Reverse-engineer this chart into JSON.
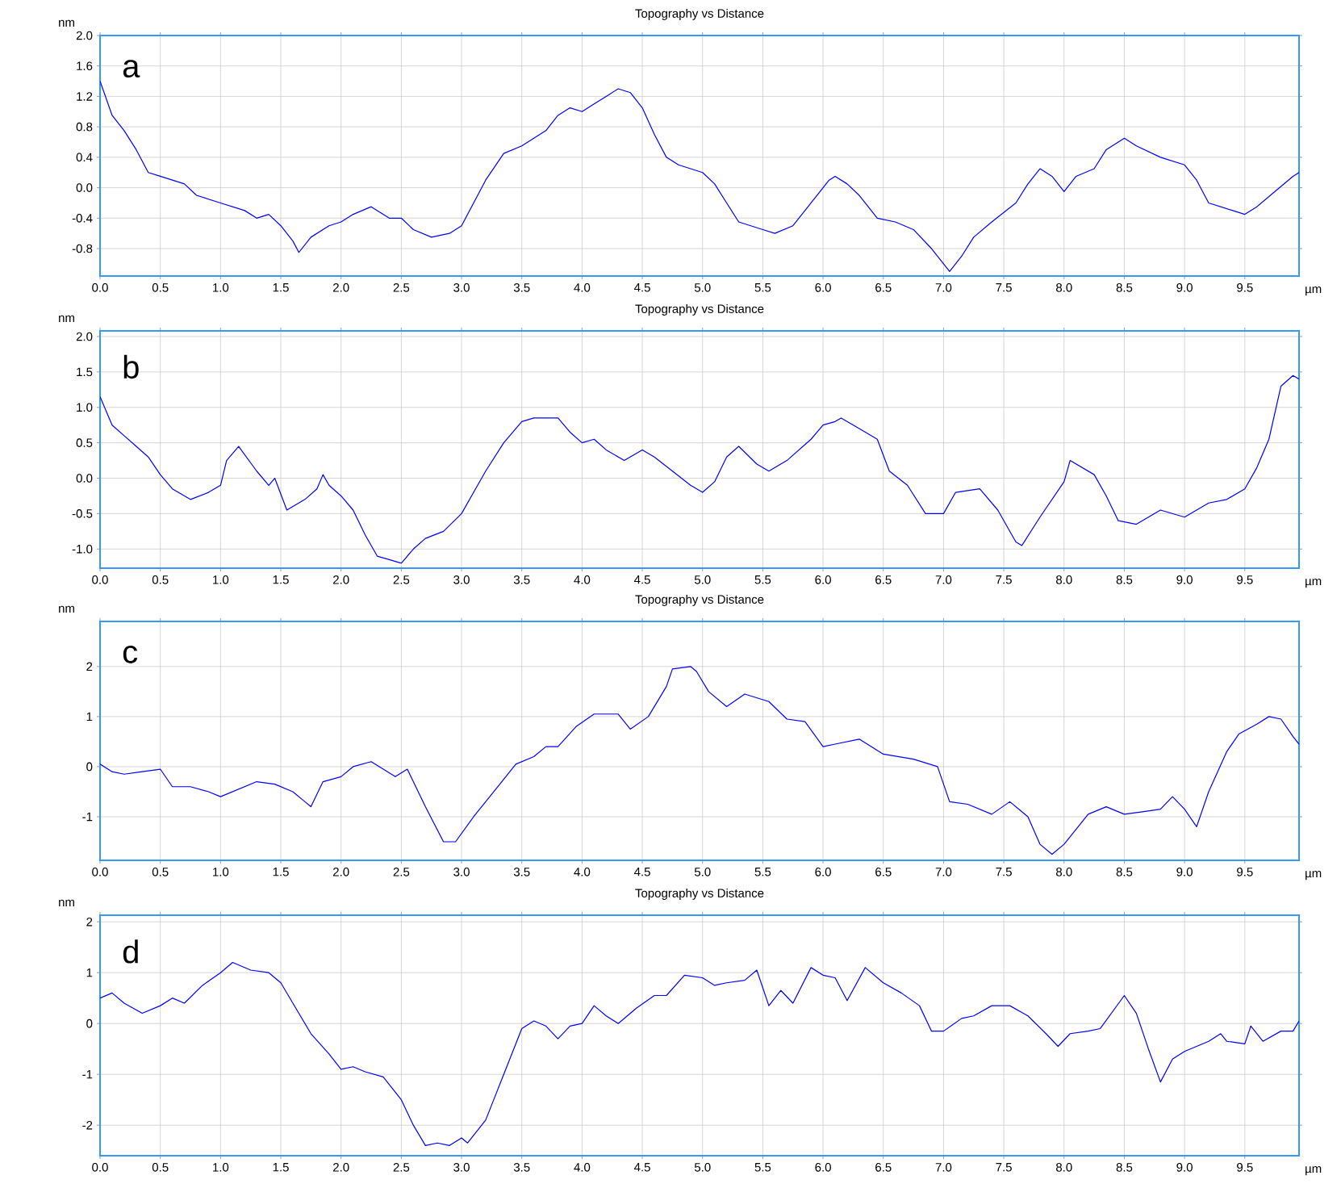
{
  "chart_data": [
    {
      "type": "line",
      "title": "Topography  vs  Distance",
      "xlabel": "µm",
      "ylabel": "nm",
      "annotations": [
        "a"
      ],
      "grid": true,
      "xlim": [
        0,
        9.95
      ],
      "ylim": [
        -1.16,
        2.0
      ],
      "xticks": [
        {
          "value": 0,
          "label": "0.0"
        },
        {
          "value": 0.5,
          "label": "0.5"
        },
        {
          "value": 1,
          "label": "1.0"
        },
        {
          "value": 1.5,
          "label": "1.5"
        },
        {
          "value": 2,
          "label": "2.0"
        },
        {
          "value": 2.5,
          "label": "2.5"
        },
        {
          "value": 3,
          "label": "3.0"
        },
        {
          "value": 3.5,
          "label": "3.5"
        },
        {
          "value": 4,
          "label": "4.0"
        },
        {
          "value": 4.5,
          "label": "4.5"
        },
        {
          "value": 5,
          "label": "5.0"
        },
        {
          "value": 5.5,
          "label": "5.5"
        },
        {
          "value": 6,
          "label": "6.0"
        },
        {
          "value": 6.5,
          "label": "6.5"
        },
        {
          "value": 7,
          "label": "7.0"
        },
        {
          "value": 7.5,
          "label": "7.5"
        },
        {
          "value": 8,
          "label": "8.0"
        },
        {
          "value": 8.5,
          "label": "8.5"
        },
        {
          "value": 9,
          "label": "9.0"
        },
        {
          "value": 9.5,
          "label": "9.5"
        }
      ],
      "yticks": [
        -0.8,
        -0.4,
        {
          "value": 0,
          "label": "0.0"
        },
        0.4,
        0.8,
        1.2,
        1.6,
        {
          "value": 2,
          "label": "2.0"
        }
      ],
      "x": [
        0,
        0.1,
        0.2,
        0.3,
        0.4,
        0.5,
        0.6,
        0.7,
        0.8,
        1.0,
        1.2,
        1.3,
        1.4,
        1.5,
        1.6,
        1.65,
        1.75,
        1.9,
        2.0,
        2.1,
        2.25,
        2.4,
        2.5,
        2.6,
        2.75,
        2.9,
        3.0,
        3.1,
        3.2,
        3.35,
        3.5,
        3.6,
        3.7,
        3.8,
        3.9,
        4.0,
        4.1,
        4.2,
        4.3,
        4.4,
        4.5,
        4.6,
        4.7,
        4.8,
        5.0,
        5.1,
        5.2,
        5.3,
        5.5,
        5.6,
        5.75,
        5.9,
        6.05,
        6.1,
        6.2,
        6.3,
        6.45,
        6.6,
        6.75,
        6.9,
        7.0,
        7.05,
        7.15,
        7.25,
        7.4,
        7.6,
        7.7,
        7.8,
        7.9,
        8.0,
        8.1,
        8.25,
        8.35,
        8.5,
        8.6,
        8.8,
        9.0,
        9.1,
        9.2,
        9.4,
        9.5,
        9.6,
        9.75,
        9.9,
        9.95
      ],
      "series": [
        {
          "color": "#0000ff",
          "values": [
            1.4,
            0.95,
            0.75,
            0.5,
            0.2,
            0.15,
            0.1,
            0.05,
            -0.1,
            -0.2,
            -0.3,
            -0.4,
            -0.35,
            -0.5,
            -0.7,
            -0.85,
            -0.65,
            -0.5,
            -0.45,
            -0.35,
            -0.25,
            -0.4,
            -0.4,
            -0.55,
            -0.65,
            -0.6,
            -0.5,
            -0.2,
            0.1,
            0.45,
            0.55,
            0.65,
            0.75,
            0.95,
            1.05,
            1.0,
            1.1,
            1.2,
            1.3,
            1.25,
            1.05,
            0.7,
            0.4,
            0.3,
            0.2,
            0.05,
            -0.2,
            -0.45,
            -0.55,
            -0.6,
            -0.5,
            -0.2,
            0.1,
            0.15,
            0.05,
            -0.1,
            -0.4,
            -0.45,
            -0.55,
            -0.8,
            -1.0,
            -1.1,
            -0.9,
            -0.65,
            -0.45,
            -0.2,
            0.05,
            0.25,
            0.15,
            -0.05,
            0.15,
            0.25,
            0.5,
            0.65,
            0.55,
            0.4,
            0.3,
            0.1,
            -0.2,
            -0.3,
            -0.35,
            -0.25,
            -0.05,
            0.15,
            0.2
          ]
        }
      ]
    },
    {
      "type": "line",
      "title": "Topography  vs  Distance",
      "xlabel": "µm",
      "ylabel": "nm",
      "annotations": [
        "b"
      ],
      "grid": true,
      "xlim": [
        0,
        9.95
      ],
      "ylim": [
        -1.27,
        2.08
      ],
      "xticks": [
        {
          "value": 0,
          "label": "0.0"
        },
        {
          "value": 0.5,
          "label": "0.5"
        },
        {
          "value": 1,
          "label": "1.0"
        },
        {
          "value": 1.5,
          "label": "1.5"
        },
        {
          "value": 2,
          "label": "2.0"
        },
        {
          "value": 2.5,
          "label": "2.5"
        },
        {
          "value": 3,
          "label": "3.0"
        },
        {
          "value": 3.5,
          "label": "3.5"
        },
        {
          "value": 4,
          "label": "4.0"
        },
        {
          "value": 4.5,
          "label": "4.5"
        },
        {
          "value": 5,
          "label": "5.0"
        },
        {
          "value": 5.5,
          "label": "5.5"
        },
        {
          "value": 6,
          "label": "6.0"
        },
        {
          "value": 6.5,
          "label": "6.5"
        },
        {
          "value": 7,
          "label": "7.0"
        },
        {
          "value": 7.5,
          "label": "7.5"
        },
        {
          "value": 8,
          "label": "8.0"
        },
        {
          "value": 8.5,
          "label": "8.5"
        },
        {
          "value": 9,
          "label": "9.0"
        },
        {
          "value": 9.5,
          "label": "9.5"
        }
      ],
      "yticks": [
        {
          "value": -1,
          "label": "-1.0"
        },
        -0.5,
        {
          "value": 0,
          "label": "0.0"
        },
        0.5,
        {
          "value": 1,
          "label": "1.0"
        },
        1.5,
        {
          "value": 2,
          "label": "2.0"
        }
      ],
      "x": [
        0,
        0.1,
        0.2,
        0.3,
        0.4,
        0.5,
        0.6,
        0.75,
        0.9,
        1.0,
        1.05,
        1.15,
        1.3,
        1.4,
        1.45,
        1.55,
        1.7,
        1.8,
        1.85,
        1.9,
        2.0,
        2.1,
        2.2,
        2.3,
        2.4,
        2.5,
        2.6,
        2.7,
        2.85,
        3.0,
        3.1,
        3.2,
        3.35,
        3.5,
        3.6,
        3.8,
        3.9,
        4.0,
        4.1,
        4.2,
        4.35,
        4.5,
        4.6,
        4.75,
        4.9,
        5.0,
        5.1,
        5.2,
        5.3,
        5.45,
        5.55,
        5.7,
        5.9,
        6.0,
        6.1,
        6.15,
        6.3,
        6.45,
        6.55,
        6.7,
        6.85,
        7.0,
        7.1,
        7.3,
        7.45,
        7.6,
        7.65,
        7.8,
        8.0,
        8.05,
        8.25,
        8.35,
        8.45,
        8.6,
        8.8,
        9.0,
        9.2,
        9.35,
        9.5,
        9.6,
        9.7,
        9.8,
        9.9,
        9.95
      ],
      "series": [
        {
          "color": "#0000ff",
          "values": [
            1.15,
            0.75,
            0.6,
            0.45,
            0.3,
            0.05,
            -0.15,
            -0.3,
            -0.2,
            -0.1,
            0.25,
            0.45,
            0.1,
            -0.1,
            0.0,
            -0.45,
            -0.3,
            -0.15,
            0.05,
            -0.1,
            -0.25,
            -0.45,
            -0.8,
            -1.1,
            -1.15,
            -1.2,
            -1.0,
            -0.85,
            -0.75,
            -0.5,
            -0.2,
            0.1,
            0.5,
            0.8,
            0.85,
            0.85,
            0.65,
            0.5,
            0.55,
            0.4,
            0.25,
            0.4,
            0.3,
            0.1,
            -0.1,
            -0.2,
            -0.05,
            0.3,
            0.45,
            0.2,
            0.1,
            0.25,
            0.55,
            0.75,
            0.8,
            0.85,
            0.7,
            0.55,
            0.1,
            -0.1,
            -0.5,
            -0.5,
            -0.2,
            -0.15,
            -0.45,
            -0.9,
            -0.95,
            -0.55,
            -0.05,
            0.25,
            0.05,
            -0.25,
            -0.6,
            -0.65,
            -0.45,
            -0.55,
            -0.35,
            -0.3,
            -0.15,
            0.15,
            0.55,
            1.3,
            1.45,
            1.4
          ]
        }
      ]
    },
    {
      "type": "line",
      "title": "Topography  vs  Distance",
      "xlabel": "µm",
      "ylabel": "nm",
      "annotations": [
        "c"
      ],
      "grid": true,
      "xlim": [
        0,
        9.95
      ],
      "ylim": [
        -1.87,
        2.9
      ],
      "xticks": [
        {
          "value": 0,
          "label": "0.0"
        },
        {
          "value": 0.5,
          "label": "0.5"
        },
        {
          "value": 1,
          "label": "1.0"
        },
        {
          "value": 1.5,
          "label": "1.5"
        },
        {
          "value": 2,
          "label": "2.0"
        },
        {
          "value": 2.5,
          "label": "2.5"
        },
        {
          "value": 3,
          "label": "3.0"
        },
        {
          "value": 3.5,
          "label": "3.5"
        },
        {
          "value": 4,
          "label": "4.0"
        },
        {
          "value": 4.5,
          "label": "4.5"
        },
        {
          "value": 5,
          "label": "5.0"
        },
        {
          "value": 5.5,
          "label": "5.5"
        },
        {
          "value": 6,
          "label": "6.0"
        },
        {
          "value": 6.5,
          "label": "6.5"
        },
        {
          "value": 7,
          "label": "7.0"
        },
        {
          "value": 7.5,
          "label": "7.5"
        },
        {
          "value": 8,
          "label": "8.0"
        },
        {
          "value": 8.5,
          "label": "8.5"
        },
        {
          "value": 9,
          "label": "9.0"
        },
        {
          "value": 9.5,
          "label": "9.5"
        }
      ],
      "yticks": [
        -1,
        0,
        1,
        2
      ],
      "x": [
        0,
        0.1,
        0.2,
        0.35,
        0.5,
        0.6,
        0.75,
        0.9,
        1.0,
        1.15,
        1.3,
        1.45,
        1.6,
        1.7,
        1.75,
        1.85,
        2.0,
        2.1,
        2.25,
        2.35,
        2.45,
        2.55,
        2.7,
        2.85,
        2.95,
        3.1,
        3.3,
        3.45,
        3.6,
        3.7,
        3.8,
        3.95,
        4.1,
        4.3,
        4.4,
        4.55,
        4.7,
        4.75,
        4.9,
        4.95,
        5.05,
        5.2,
        5.35,
        5.55,
        5.7,
        5.85,
        6.0,
        6.1,
        6.3,
        6.5,
        6.75,
        6.95,
        7.05,
        7.2,
        7.4,
        7.55,
        7.7,
        7.8,
        7.9,
        8.0,
        8.2,
        8.35,
        8.5,
        8.65,
        8.8,
        8.9,
        9.0,
        9.1,
        9.2,
        9.35,
        9.45,
        9.6,
        9.7,
        9.8,
        9.9,
        9.95
      ],
      "series": [
        {
          "color": "#0000ff",
          "values": [
            0.05,
            -0.1,
            -0.15,
            -0.1,
            -0.05,
            -0.4,
            -0.4,
            -0.5,
            -0.6,
            -0.45,
            -0.3,
            -0.35,
            -0.5,
            -0.7,
            -0.8,
            -0.3,
            -0.2,
            0.0,
            0.1,
            -0.05,
            -0.2,
            -0.05,
            -0.8,
            -1.5,
            -1.5,
            -1.0,
            -0.4,
            0.05,
            0.2,
            0.4,
            0.4,
            0.8,
            1.05,
            1.05,
            0.75,
            1.0,
            1.6,
            1.95,
            2.0,
            1.9,
            1.5,
            1.2,
            1.45,
            1.3,
            0.95,
            0.9,
            0.4,
            0.45,
            0.55,
            0.25,
            0.15,
            0.0,
            -0.7,
            -0.75,
            -0.95,
            -0.7,
            -1.0,
            -1.55,
            -1.75,
            -1.55,
            -0.95,
            -0.8,
            -0.95,
            -0.9,
            -0.85,
            -0.6,
            -0.85,
            -1.2,
            -0.5,
            0.3,
            0.65,
            0.85,
            1.0,
            0.95,
            0.6,
            0.45
          ]
        }
      ]
    },
    {
      "type": "line",
      "title": "Topography  vs  Distance",
      "xlabel": "µm",
      "ylabel": "nm",
      "annotations": [
        "d"
      ],
      "grid": true,
      "xlim": [
        0,
        9.95
      ],
      "ylim": [
        -2.6,
        2.13
      ],
      "xticks": [
        {
          "value": 0,
          "label": "0.0"
        },
        {
          "value": 0.5,
          "label": "0.5"
        },
        {
          "value": 1,
          "label": "1.0"
        },
        {
          "value": 1.5,
          "label": "1.5"
        },
        {
          "value": 2,
          "label": "2.0"
        },
        {
          "value": 2.5,
          "label": "2.5"
        },
        {
          "value": 3,
          "label": "3.0"
        },
        {
          "value": 3.5,
          "label": "3.5"
        },
        {
          "value": 4,
          "label": "4.0"
        },
        {
          "value": 4.5,
          "label": "4.5"
        },
        {
          "value": 5,
          "label": "5.0"
        },
        {
          "value": 5.5,
          "label": "5.5"
        },
        {
          "value": 6,
          "label": "6.0"
        },
        {
          "value": 6.5,
          "label": "6.5"
        },
        {
          "value": 7,
          "label": "7.0"
        },
        {
          "value": 7.5,
          "label": "7.5"
        },
        {
          "value": 8,
          "label": "8.0"
        },
        {
          "value": 8.5,
          "label": "8.5"
        },
        {
          "value": 9,
          "label": "9.0"
        },
        {
          "value": 9.5,
          "label": "9.5"
        }
      ],
      "yticks": [
        -2,
        -1,
        0,
        1,
        2
      ],
      "x": [
        0,
        0.1,
        0.2,
        0.35,
        0.5,
        0.6,
        0.7,
        0.85,
        1.0,
        1.1,
        1.25,
        1.4,
        1.5,
        1.6,
        1.75,
        1.9,
        2.0,
        2.1,
        2.2,
        2.35,
        2.5,
        2.6,
        2.7,
        2.8,
        2.9,
        3.0,
        3.05,
        3.2,
        3.35,
        3.5,
        3.6,
        3.7,
        3.8,
        3.9,
        4.0,
        4.1,
        4.2,
        4.3,
        4.45,
        4.6,
        4.7,
        4.85,
        5.0,
        5.1,
        5.2,
        5.35,
        5.45,
        5.55,
        5.65,
        5.75,
        5.9,
        6.0,
        6.1,
        6.2,
        6.35,
        6.5,
        6.65,
        6.8,
        6.9,
        7.0,
        7.15,
        7.25,
        7.4,
        7.55,
        7.7,
        7.85,
        7.95,
        8.05,
        8.2,
        8.3,
        8.5,
        8.6,
        8.7,
        8.8,
        8.9,
        9.0,
        9.2,
        9.3,
        9.35,
        9.5,
        9.55,
        9.65,
        9.8,
        9.9,
        9.95
      ],
      "series": [
        {
          "color": "#0000ff",
          "values": [
            0.5,
            0.6,
            0.4,
            0.2,
            0.35,
            0.5,
            0.4,
            0.75,
            1.0,
            1.2,
            1.05,
            1.0,
            0.8,
            0.4,
            -0.2,
            -0.6,
            -0.9,
            -0.85,
            -0.95,
            -1.05,
            -1.5,
            -2.0,
            -2.4,
            -2.35,
            -2.4,
            -2.25,
            -2.35,
            -1.9,
            -1.0,
            -0.1,
            0.05,
            -0.05,
            -0.3,
            -0.05,
            0.0,
            0.35,
            0.15,
            0.0,
            0.3,
            0.55,
            0.55,
            0.95,
            0.9,
            0.75,
            0.8,
            0.85,
            1.05,
            0.35,
            0.65,
            0.4,
            1.1,
            0.95,
            0.9,
            0.45,
            1.1,
            0.8,
            0.6,
            0.35,
            -0.15,
            -0.15,
            0.1,
            0.15,
            0.35,
            0.35,
            0.15,
            -0.2,
            -0.45,
            -0.2,
            -0.15,
            -0.1,
            0.55,
            0.2,
            -0.5,
            -1.15,
            -0.7,
            -0.55,
            -0.35,
            -0.2,
            -0.35,
            -0.4,
            -0.05,
            -0.35,
            -0.15,
            -0.15,
            0.05
          ]
        }
      ]
    }
  ]
}
